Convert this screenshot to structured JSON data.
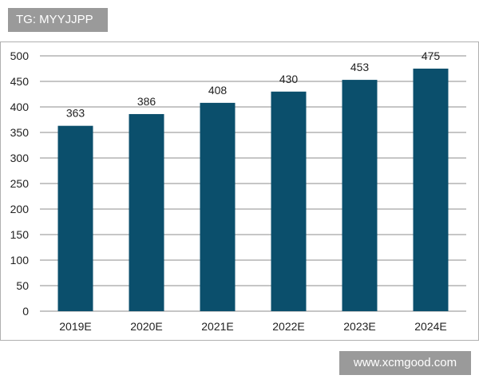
{
  "watermarks": {
    "top_left": "TG: MYYJJPP",
    "bottom_right": "www.xcmgood.com"
  },
  "colors": {
    "bar": "#0b4f6c",
    "gridline": "#8c8c8c",
    "watermark_bg": "#9a9a9a"
  },
  "chart_data": {
    "type": "bar",
    "title": "",
    "xlabel": "",
    "ylabel": "",
    "categories": [
      "2019E",
      "2020E",
      "2021E",
      "2022E",
      "2023E",
      "2024E"
    ],
    "values": [
      363,
      386,
      408,
      430,
      453,
      475
    ],
    "data_labels": [
      "363",
      "386",
      "408",
      "430",
      "453",
      "475"
    ],
    "ylim": [
      0,
      500
    ],
    "yticks": [
      0,
      50,
      100,
      150,
      200,
      250,
      300,
      350,
      400,
      450,
      500
    ],
    "grid": true,
    "legend": "none"
  }
}
